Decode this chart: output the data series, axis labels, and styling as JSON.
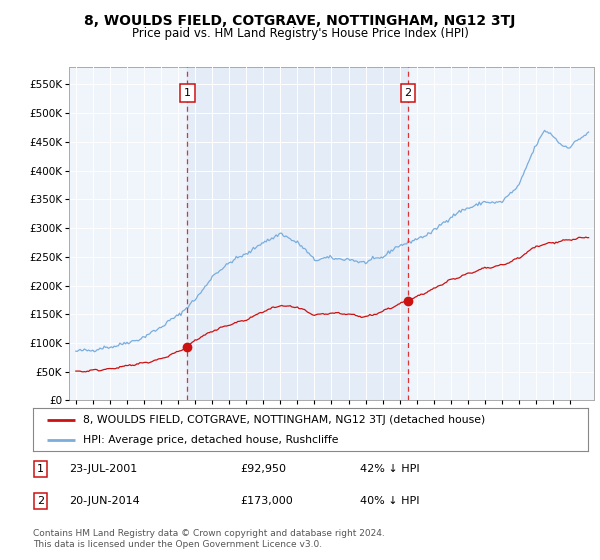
{
  "title": "8, WOULDS FIELD, COTGRAVE, NOTTINGHAM, NG12 3TJ",
  "subtitle": "Price paid vs. HM Land Registry's House Price Index (HPI)",
  "ytick_values": [
    0,
    50000,
    100000,
    150000,
    200000,
    250000,
    300000,
    350000,
    400000,
    450000,
    500000,
    550000
  ],
  "ylim": [
    0,
    580000
  ],
  "xlim_left": 1994.6,
  "xlim_right": 2025.4,
  "background_color": "#ffffff",
  "plot_bg": "#f0f4fb",
  "grid_color": "#ffffff",
  "hpi_color": "#7aaddc",
  "hpi_fill_color": "#dce9f5",
  "price_color": "#cc1111",
  "shade_color": "#dce9f5",
  "marker1_xval": 2001.55,
  "marker1_y": 92950,
  "marker2_xval": 2014.47,
  "marker2_y": 173000,
  "legend_line1": "8, WOULDS FIELD, COTGRAVE, NOTTINGHAM, NG12 3TJ (detached house)",
  "legend_line2": "HPI: Average price, detached house, Rushcliffe",
  "footer": "Contains HM Land Registry data © Crown copyright and database right 2024.\nThis data is licensed under the Open Government Licence v3.0."
}
